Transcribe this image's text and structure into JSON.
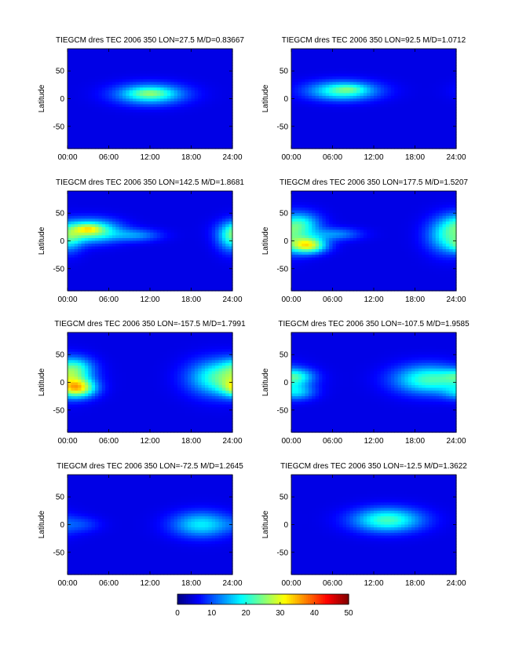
{
  "figure": {
    "colorbar": {
      "min": 0,
      "max": 50,
      "ticks": [
        "0",
        "10",
        "20",
        "30",
        "40",
        "50"
      ],
      "colormap": "jet"
    }
  },
  "chart_data": [
    {
      "type": "heatmap",
      "title": "TIEGCM dres TEC 2006 350 LON=27.5 M/D=0.83667",
      "xlabel": "",
      "ylabel": "Latitude",
      "xticks": [
        "00:00",
        "06:00",
        "12:00",
        "18:00",
        "24:00"
      ],
      "yticks": [
        "50",
        "0",
        "-50"
      ],
      "xlim": [
        0,
        24
      ],
      "ylim": [
        -90,
        90
      ],
      "clim": [
        0,
        50
      ],
      "background_level": 5,
      "features": [
        {
          "t": 12.0,
          "lat": 8,
          "st": 3.5,
          "slat": 13,
          "value": 16
        },
        {
          "t": 12.0,
          "lat": 10,
          "st": 2.0,
          "slat": 6,
          "value": 5
        }
      ]
    },
    {
      "type": "heatmap",
      "title": "TIEGCM dres TEC 2006 350 LON=92.5 M/D=1.0712",
      "xlabel": "",
      "ylabel": "Latitude",
      "xticks": [
        "00:00",
        "06:00",
        "12:00",
        "18:00",
        "24:00"
      ],
      "yticks": [
        "50",
        "0",
        "-50"
      ],
      "xlim": [
        0,
        24
      ],
      "ylim": [
        -90,
        90
      ],
      "clim": [
        0,
        50
      ],
      "background_level": 5,
      "features": [
        {
          "t": 7.5,
          "lat": 14,
          "st": 3.5,
          "slat": 12,
          "value": 17
        },
        {
          "t": 8.5,
          "lat": 18,
          "st": 1.5,
          "slat": 5,
          "value": 4
        }
      ]
    },
    {
      "type": "heatmap",
      "title": "TIEGCM dres TEC 2006 350 LON=142.5 M/D=1.8681",
      "xlabel": "",
      "ylabel": "Latitude",
      "xticks": [
        "00:00",
        "06:00",
        "12:00",
        "18:00",
        "24:00"
      ],
      "yticks": [
        "50",
        "0",
        "-50"
      ],
      "xlim": [
        0,
        24
      ],
      "ylim": [
        -90,
        90
      ],
      "clim": [
        0,
        50
      ],
      "background_level": 5,
      "features": [
        {
          "t": 3.5,
          "lat": 18,
          "st": 2.8,
          "slat": 14,
          "value": 20
        },
        {
          "t": 3.0,
          "lat": 22,
          "st": 1.3,
          "slat": 6,
          "value": 8
        },
        {
          "t": 10.0,
          "lat": 10,
          "st": 2.5,
          "slat": 8,
          "value": 8
        },
        {
          "t": 24.0,
          "lat": 5,
          "st": 1.5,
          "slat": 18,
          "value": 13
        }
      ]
    },
    {
      "type": "heatmap",
      "title": "TIEGCM dres TEC 2006 350 LON=177.5 M/D=1.5207",
      "xlabel": "",
      "ylabel": "Latitude",
      "xticks": [
        "00:00",
        "06:00",
        "12:00",
        "18:00",
        "24:00"
      ],
      "yticks": [
        "50",
        "0",
        "-50"
      ],
      "xlim": [
        0,
        24
      ],
      "ylim": [
        -90,
        90
      ],
      "clim": [
        0,
        50
      ],
      "background_level": 5,
      "features": [
        {
          "t": 2.5,
          "lat": -8,
          "st": 1.8,
          "slat": 10,
          "value": 24
        },
        {
          "t": 1.5,
          "lat": 30,
          "st": 2.0,
          "slat": 15,
          "value": 12
        },
        {
          "t": 6.5,
          "lat": 12,
          "st": 2.5,
          "slat": 8,
          "value": 8
        },
        {
          "t": 23.0,
          "lat": 10,
          "st": 2.2,
          "slat": 22,
          "value": 15
        }
      ]
    },
    {
      "type": "heatmap",
      "title": "TIEGCM dres TEC 2006 350 LON=-157.5 M/D=1.7991",
      "xlabel": "",
      "ylabel": "Latitude",
      "xticks": [
        "00:00",
        "06:00",
        "12:00",
        "18:00",
        "24:00"
      ],
      "yticks": [
        "50",
        "0",
        "-50"
      ],
      "xlim": [
        0,
        24
      ],
      "ylim": [
        -90,
        90
      ],
      "clim": [
        0,
        50
      ],
      "background_level": 5,
      "features": [
        {
          "t": 1.5,
          "lat": -10,
          "st": 1.8,
          "slat": 12,
          "value": 24
        },
        {
          "t": 1.2,
          "lat": 25,
          "st": 1.8,
          "slat": 14,
          "value": 12
        },
        {
          "t": 22.0,
          "lat": 8,
          "st": 3.0,
          "slat": 22,
          "value": 17
        }
      ]
    },
    {
      "type": "heatmap",
      "title": "TIEGCM dres TEC 2006 350 LON=-107.5 M/D=1.9585",
      "xlabel": "",
      "ylabel": "Latitude",
      "xticks": [
        "00:00",
        "06:00",
        "12:00",
        "18:00",
        "24:00"
      ],
      "yticks": [
        "50",
        "0",
        "-50"
      ],
      "xlim": [
        0,
        24
      ],
      "ylim": [
        -90,
        90
      ],
      "clim": [
        0,
        50
      ],
      "background_level": 5,
      "features": [
        {
          "t": 0.8,
          "lat": 10,
          "st": 1.8,
          "slat": 10,
          "value": 11
        },
        {
          "t": 0.8,
          "lat": -18,
          "st": 1.8,
          "slat": 10,
          "value": 10
        },
        {
          "t": 20.0,
          "lat": 5,
          "st": 3.5,
          "slat": 18,
          "value": 17
        }
      ]
    },
    {
      "type": "heatmap",
      "title": "TIEGCM dres TEC 2006 350 LON=-72.5 M/D=1.2645",
      "xlabel": "",
      "ylabel": "Latitude",
      "xticks": [
        "00:00",
        "06:00",
        "12:00",
        "18:00",
        "24:00"
      ],
      "yticks": [
        "50",
        "0",
        "-50"
      ],
      "xlim": [
        0,
        24
      ],
      "ylim": [
        -90,
        90
      ],
      "clim": [
        0,
        50
      ],
      "background_level": 5,
      "features": [
        {
          "t": 19.5,
          "lat": 0,
          "st": 3.0,
          "slat": 16,
          "value": 13
        },
        {
          "t": 2.0,
          "lat": 0,
          "st": 2.0,
          "slat": 10,
          "value": 4
        }
      ]
    },
    {
      "type": "heatmap",
      "title": "TIEGCM dres TEC 2006 350 LON=-12.5 M/D=1.3622",
      "xlabel": "",
      "ylabel": "Latitude",
      "xticks": [
        "00:00",
        "06:00",
        "12:00",
        "18:00",
        "24:00"
      ],
      "yticks": [
        "50",
        "0",
        "-50"
      ],
      "xlim": [
        0,
        24
      ],
      "ylim": [
        -90,
        90
      ],
      "clim": [
        0,
        50
      ],
      "background_level": 5,
      "features": [
        {
          "t": 14.0,
          "lat": 8,
          "st": 3.5,
          "slat": 15,
          "value": 17
        }
      ]
    }
  ]
}
